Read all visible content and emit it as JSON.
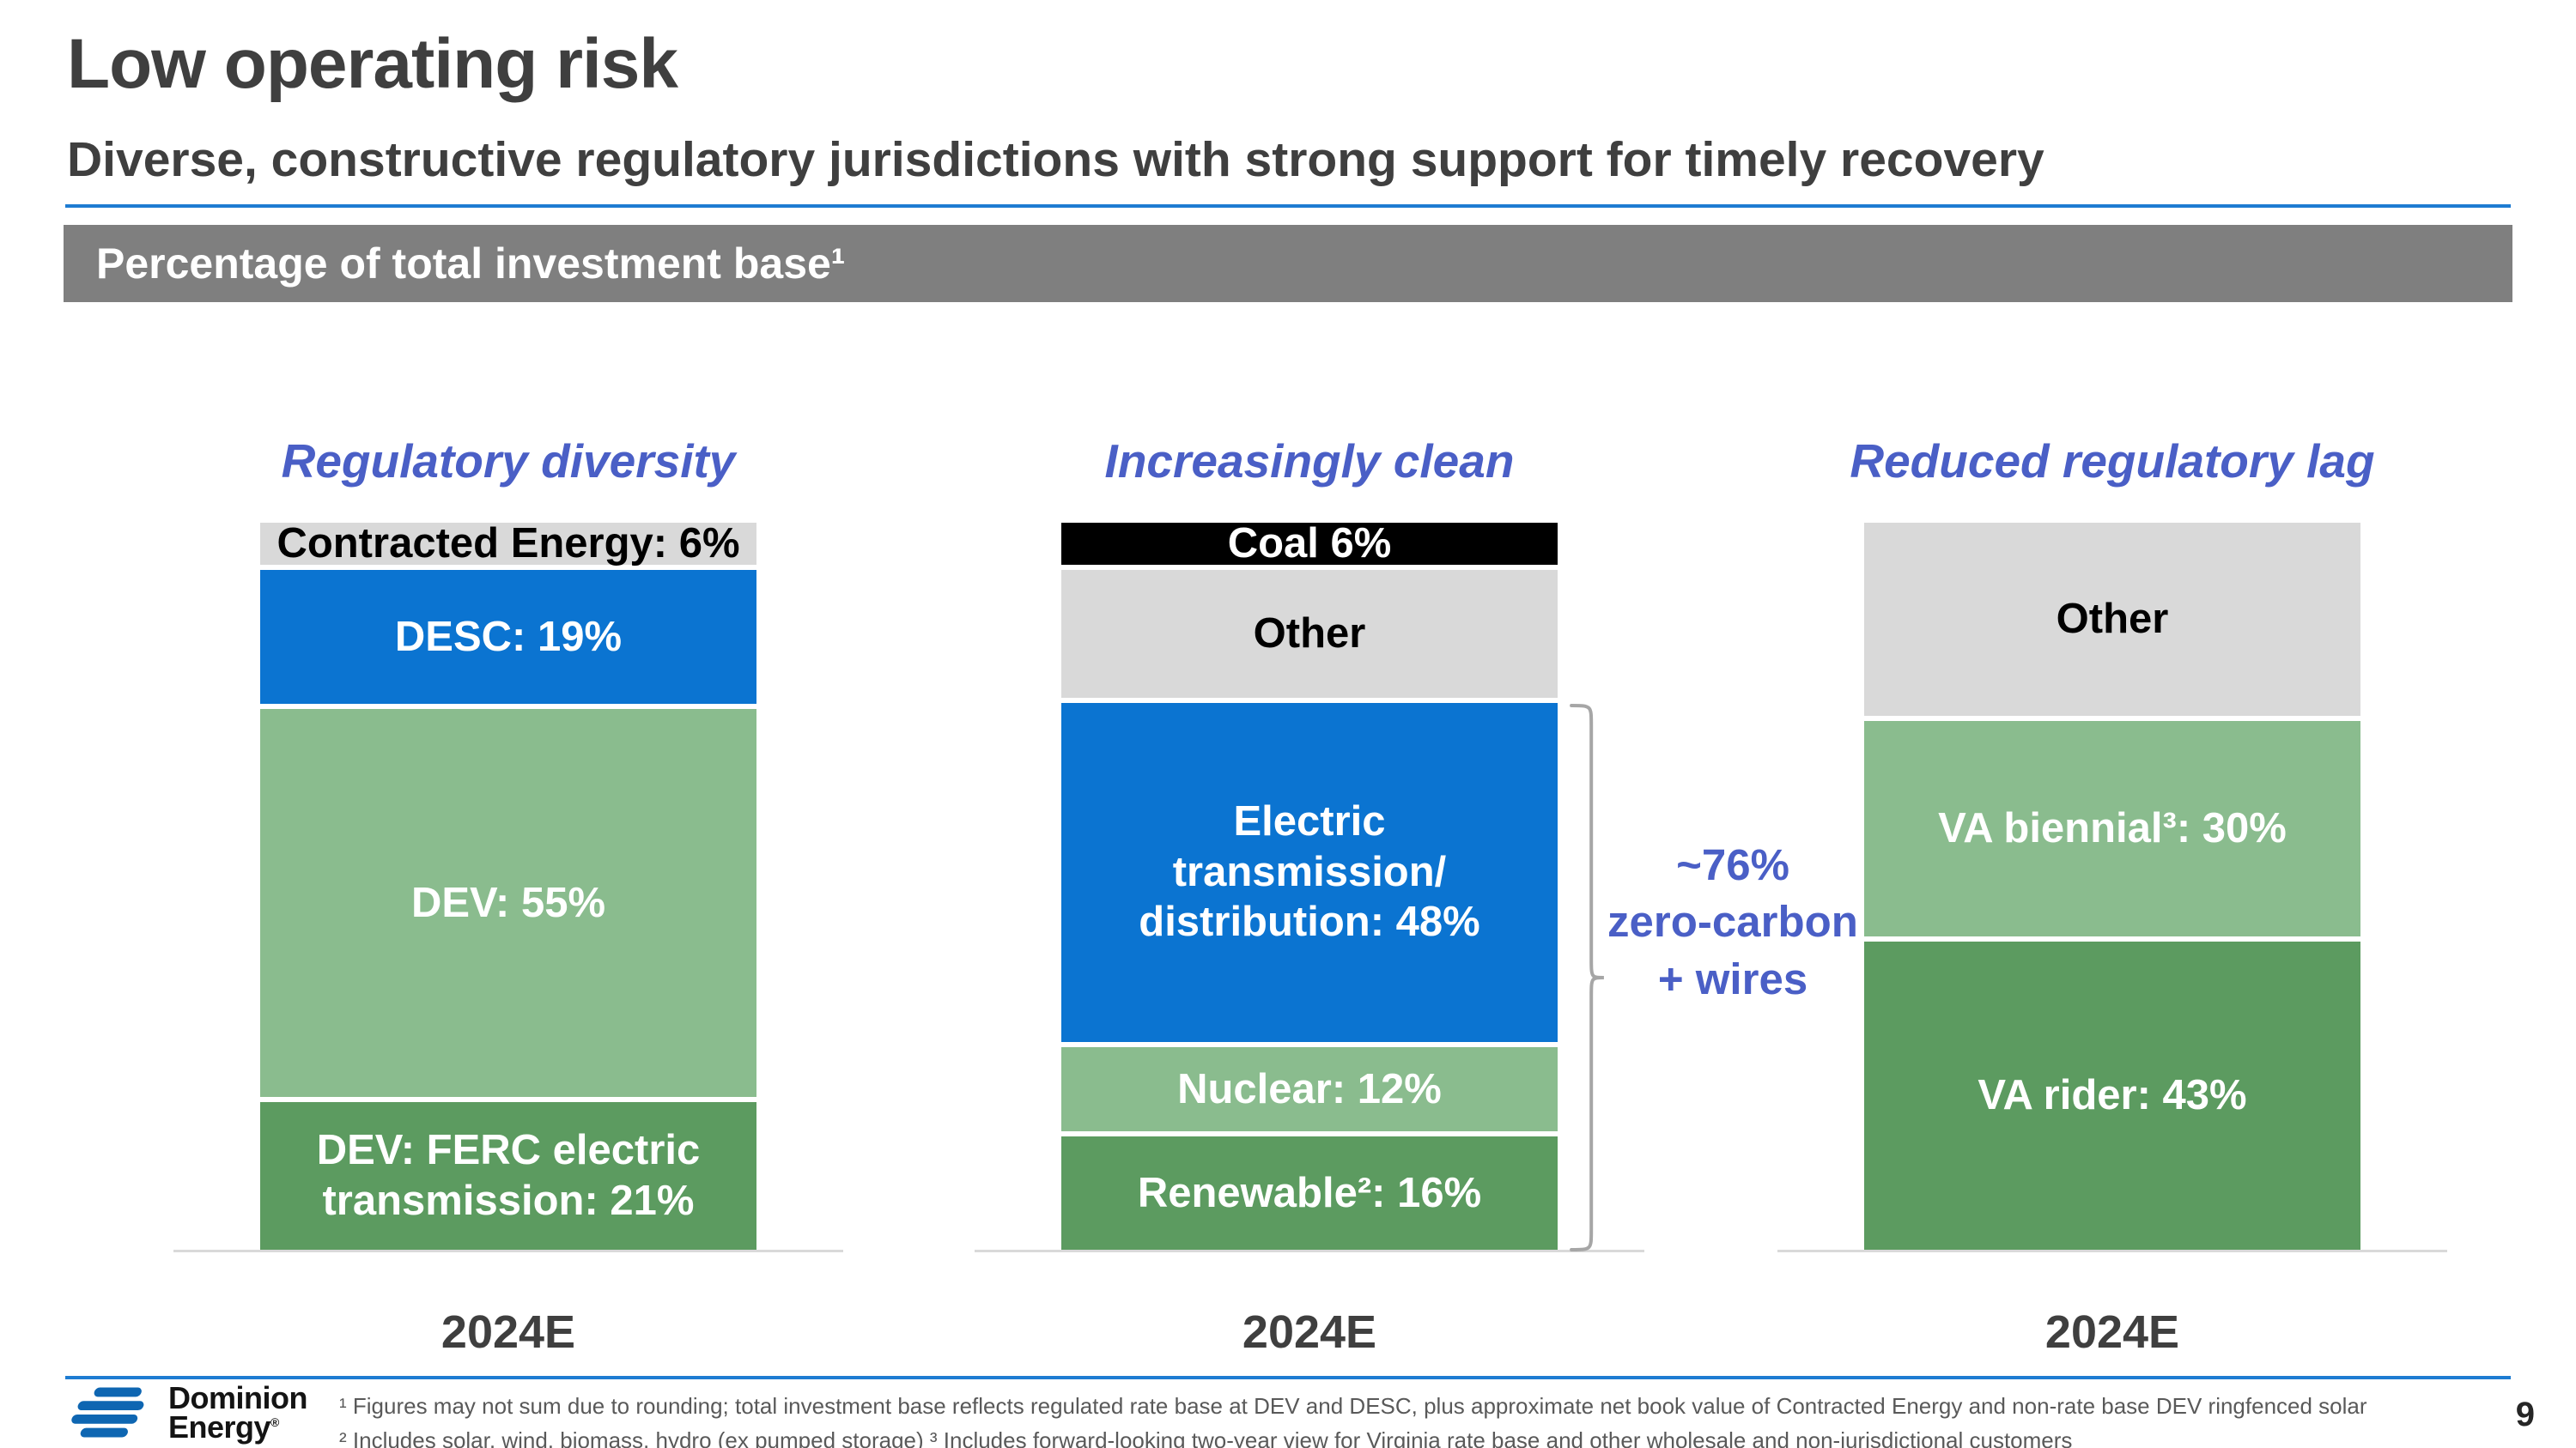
{
  "slide": {
    "title": "Low operating risk",
    "subtitle": "Diverse, constructive regulatory jurisdictions with strong support for timely recovery",
    "banner": "Percentage of total investment base¹",
    "page_number": "9"
  },
  "colors": {
    "accent_rule": "#1E7CD2",
    "heading_accent": "#4A5FC6",
    "banner_bg": "#7F7F7F",
    "title_color": "#3F3F3F",
    "footnote_color": "#595959",
    "axis_color": "#D9D9D9",
    "bracket_color": "#A6A6A6",
    "segment_blue": "#0B74D1",
    "segment_light_green": "#8ABC8E",
    "segment_dark_green": "#5C9B60",
    "segment_gray": "#D9D9D9",
    "segment_black": "#000000"
  },
  "chart_data": [
    {
      "type": "bar",
      "stacked": true,
      "unit": "%",
      "title": "Regulatory diversity",
      "categories": [
        "2024E"
      ],
      "ylim": [
        0,
        100
      ],
      "segments": [
        {
          "name": "contracted-energy",
          "label": "Contracted Energy: 6%",
          "value": 6,
          "color": "#D9D9D9",
          "text_color": "#000000"
        },
        {
          "name": "desc",
          "label": "DESC: 19%",
          "value": 19,
          "color": "#0B74D1",
          "text_color": "#FFFFFF"
        },
        {
          "name": "dev",
          "label": "DEV: 55%",
          "value": 55,
          "color": "#8ABC8E",
          "text_color": "#FFFFFF"
        },
        {
          "name": "dev-ferc-electric-transmission",
          "label": "DEV: FERC electric\ntransmission: 21%",
          "value": 21,
          "color": "#5C9B60",
          "text_color": "#FFFFFF"
        }
      ]
    },
    {
      "type": "bar",
      "stacked": true,
      "unit": "%",
      "title": "Increasingly clean",
      "categories": [
        "2024E"
      ],
      "ylim": [
        0,
        100
      ],
      "annotation": "~76%\nzero-carbon\n+ wires",
      "segments": [
        {
          "name": "coal",
          "label": "Coal 6%",
          "value": 6,
          "color": "#000000",
          "text_color": "#FFFFFF"
        },
        {
          "name": "other",
          "label": "Other",
          "value": 18,
          "color": "#D9D9D9",
          "text_color": "#000000"
        },
        {
          "name": "electric-transmission-distribution",
          "label": "Electric\ntransmission/\ndistribution: 48%",
          "value": 48,
          "color": "#0B74D1",
          "text_color": "#FFFFFF"
        },
        {
          "name": "nuclear",
          "label": "Nuclear: 12%",
          "value": 12,
          "color": "#8ABC8E",
          "text_color": "#FFFFFF"
        },
        {
          "name": "renewable",
          "label": "Renewable²: 16%",
          "value": 16,
          "color": "#5C9B60",
          "text_color": "#FFFFFF"
        }
      ]
    },
    {
      "type": "bar",
      "stacked": true,
      "unit": "%",
      "title": "Reduced regulatory lag",
      "categories": [
        "2024E"
      ],
      "ylim": [
        0,
        100
      ],
      "segments": [
        {
          "name": "other",
          "label": "Other",
          "value": 27,
          "color": "#D9D9D9",
          "text_color": "#000000"
        },
        {
          "name": "va-biennial",
          "label": "VA biennial³: 30%",
          "value": 30,
          "color": "#8ABC8E",
          "text_color": "#FFFFFF"
        },
        {
          "name": "va-rider",
          "label": "VA rider: 43%",
          "value": 43,
          "color": "#5C9B60",
          "text_color": "#FFFFFF"
        }
      ]
    }
  ],
  "footer": {
    "logo_line1": "Dominion",
    "logo_line2": "Energy",
    "logo_reg": "®",
    "footnote1": "¹ Figures may not sum due to rounding; total investment base reflects regulated rate base at DEV and DESC, plus approximate net book value of Contracted Energy and non-rate base DEV ringfenced solar",
    "footnote2": "² Includes solar, wind, biomass, hydro (ex pumped storage) ³ Includes forward-looking two-year view for Virginia rate base and other wholesale and non-jurisdictional customers"
  }
}
